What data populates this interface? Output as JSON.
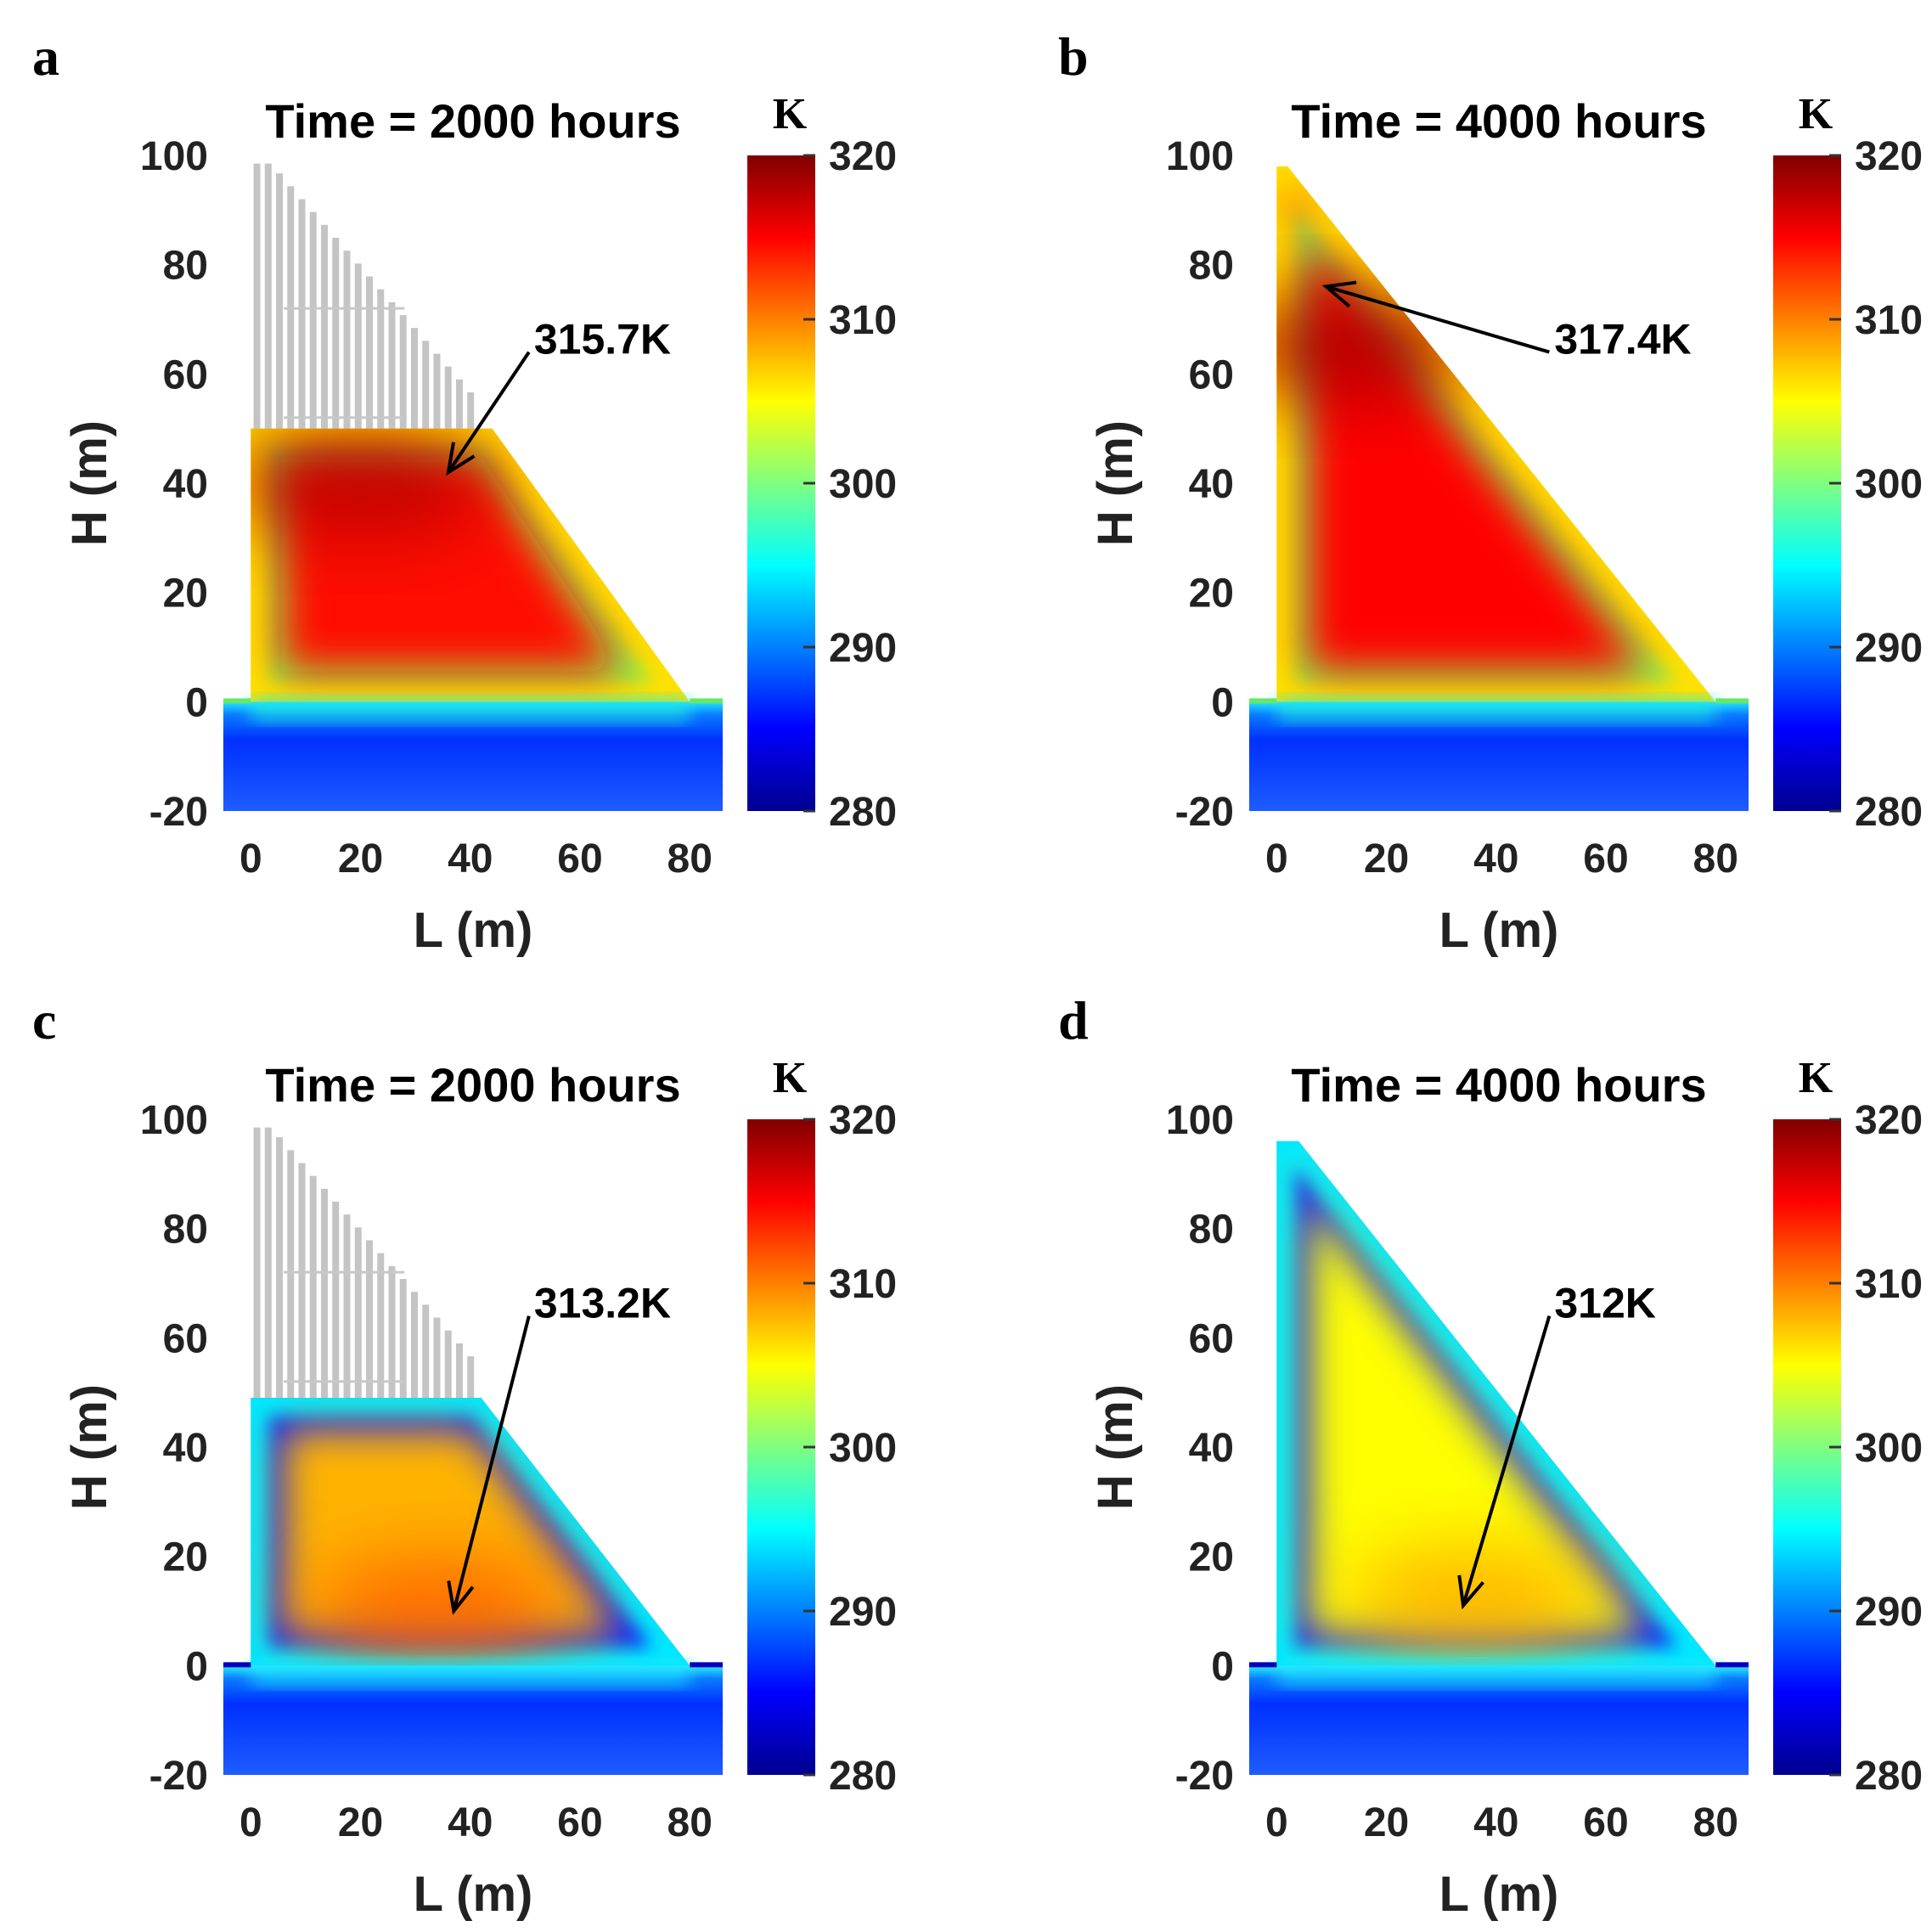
{
  "chart_data": [
    {
      "type": "heatmap",
      "panel_letter": "a",
      "title": "Time = 2000 hours",
      "xlabel": "L (m)",
      "ylabel": "H (m)",
      "xlim": [
        -5,
        86
      ],
      "ylim": [
        -20,
        100
      ],
      "xticks": [
        "0",
        "20",
        "40",
        "60",
        "80"
      ],
      "yticks": [
        "-20",
        "0",
        "20",
        "40",
        "60",
        "80",
        "100"
      ],
      "colorbar": {
        "unit": "K",
        "range": [
          280,
          320
        ],
        "ticks": [
          "280",
          "290",
          "300",
          "310",
          "320"
        ]
      },
      "dam_crest_height": 50,
      "profile_points": [
        [
          0,
          50
        ],
        [
          44,
          50
        ],
        [
          80,
          0
        ]
      ],
      "scaffold": true,
      "rim": "hot",
      "core_temp": 314.5,
      "hot_zone": {
        "x": 20,
        "y": 40
      },
      "annotation": {
        "text": "315.7K",
        "text_at": [
          51,
          64
        ],
        "arrow_to": [
          36,
          42
        ]
      }
    },
    {
      "type": "heatmap",
      "panel_letter": "b",
      "title": "Time = 4000 hours",
      "xlabel": "L (m)",
      "ylabel": "H (m)",
      "xlim": [
        -5,
        86
      ],
      "ylim": [
        -20,
        100
      ],
      "xticks": [
        "0",
        "20",
        "40",
        "60",
        "80"
      ],
      "yticks": [
        "-20",
        "0",
        "20",
        "40",
        "60",
        "80",
        "100"
      ],
      "colorbar": {
        "unit": "K",
        "range": [
          280,
          320
        ],
        "ticks": [
          "280",
          "290",
          "300",
          "310",
          "320"
        ]
      },
      "dam_crest_height": 98,
      "profile_points": [
        [
          0,
          98
        ],
        [
          2,
          98
        ],
        [
          80,
          0
        ]
      ],
      "scaffold": false,
      "rim": "hot",
      "core_temp": 315,
      "hot_zone": {
        "x": 14,
        "y": 65
      },
      "annotation": {
        "text": "317.4K",
        "text_at": [
          50,
          64
        ],
        "arrow_to": [
          9,
          76
        ]
      }
    },
    {
      "type": "heatmap",
      "panel_letter": "c",
      "title": "Time = 2000 hours",
      "xlabel": "L (m)",
      "ylabel": "H (m)",
      "xlim": [
        -5,
        86
      ],
      "ylim": [
        -20,
        100
      ],
      "xticks": [
        "0",
        "20",
        "40",
        "60",
        "80"
      ],
      "yticks": [
        "-20",
        "0",
        "20",
        "40",
        "60",
        "80",
        "100"
      ],
      "colorbar": {
        "unit": "K",
        "range": [
          280,
          320
        ],
        "ticks": [
          "280",
          "290",
          "300",
          "310",
          "320"
        ]
      },
      "dam_crest_height": 49,
      "profile_points": [
        [
          0,
          49
        ],
        [
          42,
          49
        ],
        [
          80,
          0
        ]
      ],
      "scaffold": true,
      "rim": "cold",
      "core_temp": 308,
      "hot_zone": {
        "x": 34,
        "y": 10
      },
      "annotation": {
        "text": "313.2K",
        "text_at": [
          51,
          64
        ],
        "arrow_to": [
          37,
          10
        ]
      }
    },
    {
      "type": "heatmap",
      "panel_letter": "d",
      "title": "Time = 4000 hours",
      "xlabel": "L (m)",
      "ylabel": "H (m)",
      "xlim": [
        -5,
        86
      ],
      "ylim": [
        -20,
        100
      ],
      "xticks": [
        "0",
        "20",
        "40",
        "60",
        "80"
      ],
      "yticks": [
        "-20",
        "0",
        "20",
        "40",
        "60",
        "80",
        "100"
      ],
      "colorbar": {
        "unit": "K",
        "range": [
          280,
          320
        ],
        "ticks": [
          "280",
          "290",
          "300",
          "310",
          "320"
        ]
      },
      "dam_crest_height": 96,
      "profile_points": [
        [
          0,
          96
        ],
        [
          4,
          96
        ],
        [
          80,
          0
        ]
      ],
      "scaffold": false,
      "rim": "cold",
      "core_temp": 305,
      "hot_zone": {
        "x": 36,
        "y": 12
      },
      "annotation": {
        "text": "312K",
        "text_at": [
          50,
          64
        ],
        "arrow_to": [
          34,
          11
        ]
      }
    }
  ]
}
